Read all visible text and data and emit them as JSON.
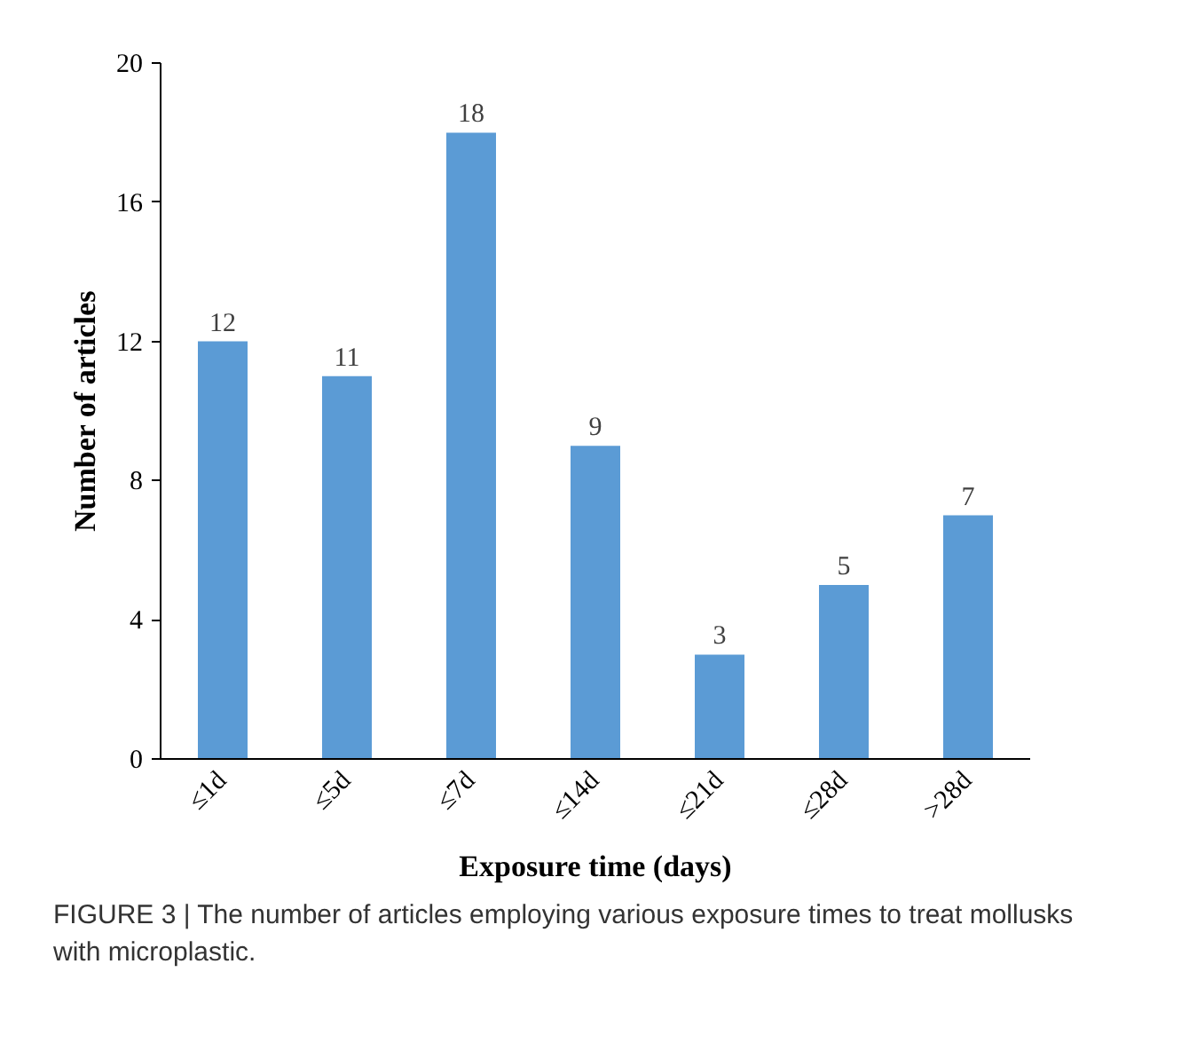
{
  "chart_data": {
    "type": "bar",
    "xlabel": "Exposure time (days)",
    "ylabel": "Number of articles",
    "categories": [
      "≤1d",
      "≤5d",
      "≤7d",
      "≤14d",
      "≤21d",
      "≤28d",
      ">28d"
    ],
    "values": [
      12,
      11,
      18,
      9,
      3,
      5,
      7
    ],
    "color": "#5b9bd5",
    "ylim": [
      0,
      20
    ],
    "yticks": [
      0,
      4,
      8,
      12,
      16,
      20
    ],
    "grid": false,
    "data_labels": true,
    "annotations": [
      "FIGURE 3 | The number of articles employing various exposure times to treat mollusks with microplastic."
    ]
  }
}
